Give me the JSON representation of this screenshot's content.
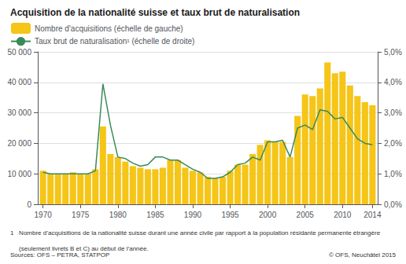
{
  "chart_data": {
    "type": "bar",
    "title": "Acquisition de la nationalité suisse et taux brut de naturalisation",
    "x": [
      1970,
      1971,
      1972,
      1973,
      1974,
      1975,
      1976,
      1977,
      1978,
      1979,
      1980,
      1981,
      1982,
      1983,
      1984,
      1985,
      1986,
      1987,
      1988,
      1989,
      1990,
      1991,
      1992,
      1993,
      1994,
      1995,
      1996,
      1997,
      1998,
      1999,
      2000,
      2001,
      2002,
      2003,
      2004,
      2005,
      2006,
      2007,
      2008,
      2009,
      2010,
      2011,
      2012,
      2013,
      2014
    ],
    "xlim": [
      1969.3,
      2014.7
    ],
    "xticks": [
      1970,
      1975,
      1980,
      1985,
      1990,
      1995,
      2000,
      2005,
      2010,
      2014
    ],
    "series": [
      {
        "name": "Nombre d'acquisitions (échelle de gauche)",
        "type": "bar",
        "color": "#F5C518",
        "values": [
          11000,
          10000,
          10000,
          10000,
          10500,
          10000,
          10000,
          11500,
          25500,
          16500,
          15500,
          14000,
          12500,
          12000,
          11500,
          11500,
          12000,
          14500,
          14500,
          12000,
          11000,
          10500,
          9000,
          8500,
          9000,
          11000,
          13000,
          13000,
          16500,
          19500,
          21000,
          20500,
          20500,
          15500,
          29000,
          36000,
          35500,
          38000,
          46500,
          43000,
          43500,
          39000,
          35500,
          33500,
          32500
        ]
      },
      {
        "name": "Taux brut de naturalisation¹ (échelle de droite)",
        "type": "line",
        "color": "#3A8A5A",
        "axis": "y2",
        "values": [
          1.05,
          1.0,
          1.0,
          1.0,
          1.0,
          1.0,
          1.0,
          1.1,
          3.95,
          2.6,
          1.55,
          1.5,
          1.35,
          1.25,
          1.3,
          1.55,
          1.55,
          1.45,
          1.45,
          1.3,
          1.15,
          1.05,
          0.85,
          0.85,
          0.9,
          1.05,
          1.3,
          1.35,
          1.55,
          1.45,
          2.05,
          2.05,
          2.1,
          1.55,
          2.5,
          2.6,
          2.45,
          3.1,
          3.05,
          2.8,
          2.85,
          2.5,
          2.15,
          2.0,
          1.95
        ]
      }
    ],
    "ylim": [
      0,
      50000
    ],
    "yticks": [
      0,
      {
        "value": 10000,
        "label": "10 000"
      },
      {
        "value": 20000,
        "label": "20 000"
      },
      {
        "value": 30000,
        "label": "30 000"
      },
      {
        "value": 40000,
        "label": "40 000"
      },
      {
        "value": 50000,
        "label": "50 000"
      }
    ],
    "y2lim": [
      0.0,
      5.0
    ],
    "y2ticks": [
      {
        "value": 0.0,
        "label": "0,0%"
      },
      {
        "value": 1.0,
        "label": "1,0%"
      },
      {
        "value": 2.0,
        "label": "2,0%"
      },
      {
        "value": 3.0,
        "label": "3,0%"
      },
      {
        "value": 4.0,
        "label": "4,0%"
      },
      {
        "value": 5.0,
        "label": "5,0%"
      }
    ],
    "grid": true,
    "legend": "upper left",
    "annotations": [
      "1   Nombre d’acquisitions de la nationalité suisse durant une année civile par rapport à la population résidante permanente étrangère",
      "     (seulement livrets B et C) au début de l’année.",
      "Sources: OFS – PETRA, STATPOP",
      "© OFS, Neuchâtel 2015"
    ]
  }
}
